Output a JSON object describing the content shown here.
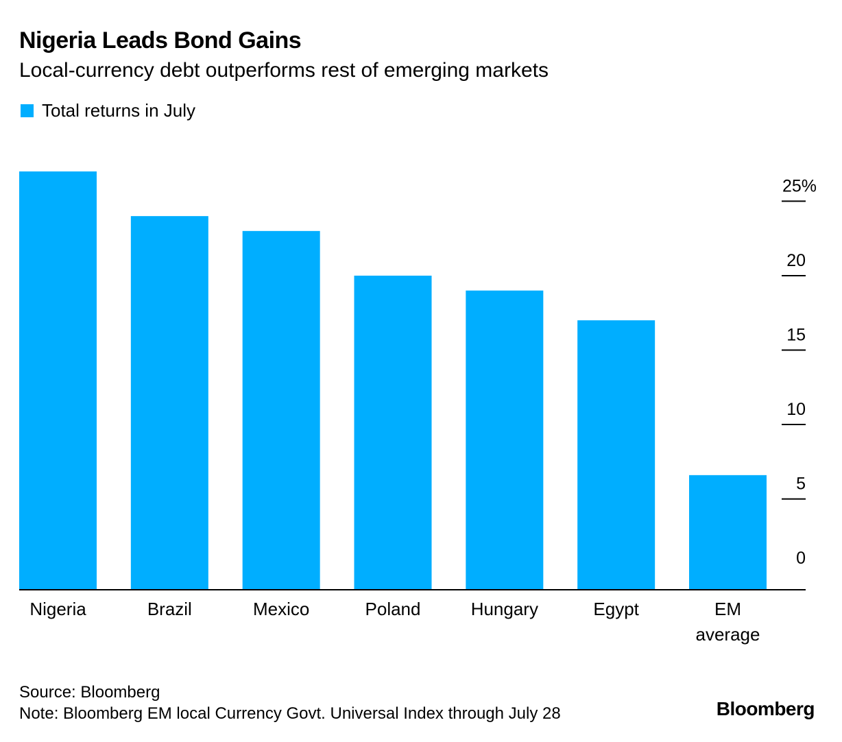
{
  "header": {
    "title": "Nigeria Leads Bond Gains",
    "subtitle": "Local-currency debt outperforms rest of emerging markets"
  },
  "legend": {
    "label": "Total returns in July",
    "color": "#00AEFF"
  },
  "colors": {
    "bar": "#00AEFF",
    "axis": "#000000",
    "background": "#ffffff"
  },
  "chart_data": {
    "type": "bar",
    "categories": [
      "Nigeria",
      "Brazil",
      "Mexico",
      "Poland",
      "Hungary",
      "Egypt",
      "EM average"
    ],
    "series": [
      {
        "name": "Total returns in July",
        "values": [
          27.0,
          24.0,
          23.0,
          20.0,
          19.0,
          17.0,
          6.6
        ]
      }
    ],
    "xlabel": "",
    "ylabel": "",
    "ylim": [
      -1.1,
      27.0
    ],
    "yticks": [
      0,
      5,
      10,
      15,
      20,
      25
    ],
    "ytick_labels": [
      "0",
      "5",
      "10",
      "15",
      "20",
      "25%"
    ],
    "y_axis_position": "right",
    "grid": false
  },
  "footer": {
    "source": "Source: Bloomberg",
    "note": "Note: Bloomberg EM local Currency Govt. Universal Index through July 28",
    "brand": "Bloomberg"
  }
}
